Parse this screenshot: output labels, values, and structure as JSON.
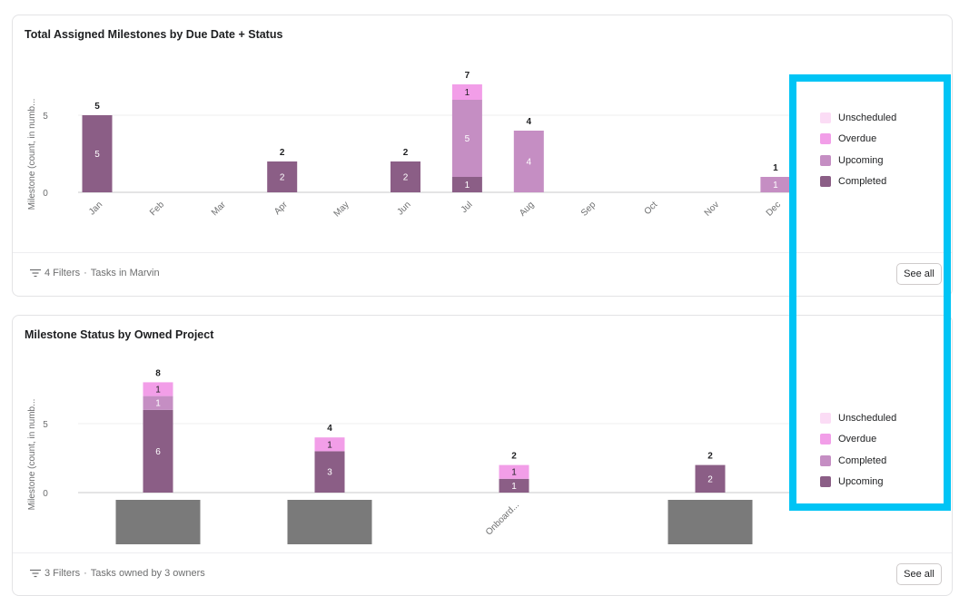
{
  "colors": {
    "unscheduled": "#fbdcf5",
    "overdue": "#f29ee8",
    "upcoming": "#c58ec3",
    "completed": "#8b5e86",
    "redacted": "#7a7a7a",
    "highlight": "#00c4f5"
  },
  "chart1": {
    "title": "Total Assigned Milestones by Due Date + Status",
    "footer_filters": "4 Filters",
    "footer_source": "Tasks in Marvin",
    "see_all": "See all",
    "legend": [
      {
        "label": "Unscheduled",
        "color_key": "unscheduled"
      },
      {
        "label": "Overdue",
        "color_key": "overdue"
      },
      {
        "label": "Upcoming",
        "color_key": "upcoming"
      },
      {
        "label": "Completed",
        "color_key": "completed"
      }
    ]
  },
  "chart2": {
    "title": "Milestone Status by Owned Project",
    "footer_filters": "3 Filters",
    "footer_source": "Tasks owned by 3 owners",
    "see_all": "See all",
    "legend": [
      {
        "label": "Unscheduled",
        "color_key": "unscheduled"
      },
      {
        "label": "Overdue",
        "color_key": "overdue"
      },
      {
        "label": "Completed",
        "color_key": "upcoming"
      },
      {
        "label": "Upcoming",
        "color_key": "completed"
      }
    ]
  },
  "chart_data": [
    {
      "type": "bar",
      "stacked": true,
      "title": "Total Assigned Milestones by Due Date + Status",
      "ylabel": "Milestone (count, in numb...",
      "ylim": [
        0,
        7
      ],
      "yticks": [
        0,
        5
      ],
      "categories": [
        "Jan",
        "Feb",
        "Mar",
        "Apr",
        "May",
        "Jun",
        "Jul",
        "Aug",
        "Sep",
        "Oct",
        "Nov",
        "Dec"
      ],
      "series": [
        {
          "name": "Completed",
          "color_key": "completed",
          "values": [
            5,
            0,
            0,
            2,
            0,
            2,
            1,
            0,
            0,
            0,
            0,
            0
          ]
        },
        {
          "name": "Upcoming",
          "color_key": "upcoming",
          "values": [
            0,
            0,
            0,
            0,
            0,
            0,
            5,
            4,
            0,
            0,
            0,
            1
          ]
        },
        {
          "name": "Overdue",
          "color_key": "overdue",
          "values": [
            0,
            0,
            0,
            0,
            0,
            0,
            1,
            0,
            0,
            0,
            0,
            0
          ]
        },
        {
          "name": "Unscheduled",
          "color_key": "unscheduled",
          "values": [
            0,
            0,
            0,
            0,
            0,
            0,
            0,
            0,
            0,
            0,
            0,
            0
          ]
        }
      ],
      "totals": [
        5,
        0,
        0,
        2,
        0,
        2,
        7,
        4,
        0,
        0,
        0,
        1
      ],
      "legend_position": "right"
    },
    {
      "type": "bar",
      "stacked": true,
      "title": "Milestone Status by Owned Project",
      "ylabel": "Milestone (count, in numb...",
      "ylim": [
        0,
        8
      ],
      "yticks": [
        0,
        5
      ],
      "categories": [
        "",
        "",
        "Onboard...",
        ""
      ],
      "category_redacted": [
        true,
        true,
        false,
        true
      ],
      "series": [
        {
          "name": "Upcoming",
          "color_key": "completed",
          "values": [
            6,
            3,
            1,
            2
          ]
        },
        {
          "name": "Completed",
          "color_key": "upcoming",
          "values": [
            1,
            0,
            0,
            0
          ]
        },
        {
          "name": "Overdue",
          "color_key": "overdue",
          "values": [
            1,
            1,
            1,
            0
          ]
        },
        {
          "name": "Unscheduled",
          "color_key": "unscheduled",
          "values": [
            0,
            0,
            0,
            0
          ]
        }
      ],
      "totals": [
        8,
        4,
        2,
        2
      ],
      "legend_position": "right"
    }
  ]
}
